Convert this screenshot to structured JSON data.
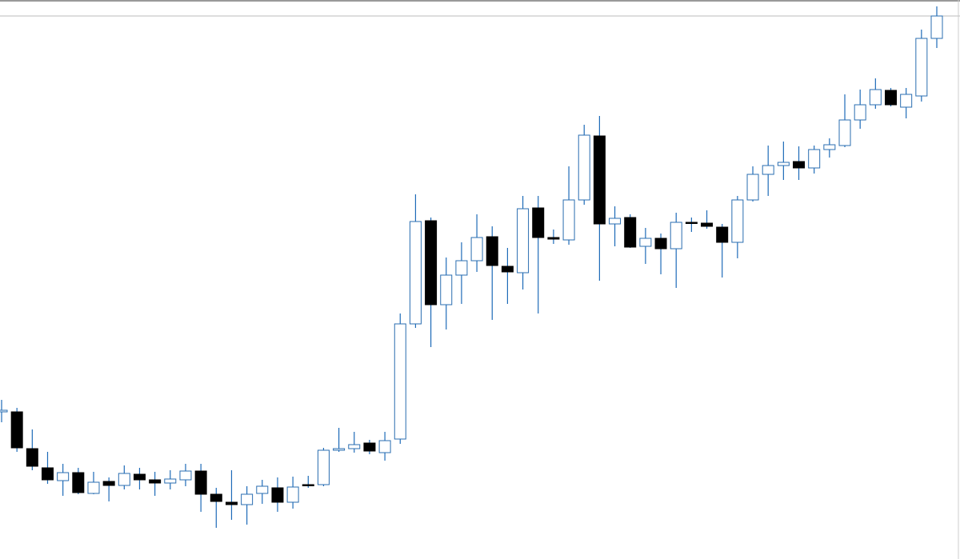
{
  "chart_data": {
    "type": "candlestick",
    "open": [
      185,
      185,
      139,
      115,
      99,
      109,
      83,
      98,
      93,
      107,
      100,
      96,
      100,
      111,
      82,
      72,
      69,
      83,
      90,
      72,
      94,
      94,
      137,
      139,
      146,
      134,
      151,
      295,
      424,
      319,
      356,
      374,
      404,
      367,
      359,
      440,
      403,
      400,
      450,
      530,
      420,
      428,
      392,
      402,
      389,
      422,
      421,
      416,
      397,
      450,
      482,
      493,
      498,
      490,
      513,
      518,
      550,
      569,
      587,
      566,
      580,
      652
    ],
    "high": [
      200,
      190,
      163,
      135,
      120,
      115,
      110,
      103,
      118,
      115,
      110,
      112,
      120,
      120,
      90,
      112,
      92,
      100,
      103,
      104,
      105,
      140,
      165,
      160,
      150,
      160,
      308,
      457,
      428,
      378,
      397,
      432,
      417,
      390,
      455,
      455,
      413,
      492,
      544,
      555,
      442,
      432,
      415,
      408,
      434,
      428,
      437,
      420,
      455,
      492,
      518,
      523,
      517,
      518,
      527,
      582,
      588,
      602,
      590,
      590,
      663,
      692
    ],
    "low": [
      172,
      135,
      112,
      95,
      80,
      82,
      82,
      73,
      88,
      88,
      80,
      88,
      92,
      60,
      40,
      50,
      44,
      70,
      60,
      64,
      90,
      92,
      135,
      134,
      132,
      124,
      145,
      290,
      266,
      288,
      320,
      360,
      300,
      320,
      338,
      308,
      395,
      394,
      444,
      349,
      392,
      390,
      370,
      357,
      340,
      410,
      414,
      353,
      377,
      448,
      455,
      475,
      475,
      483,
      503,
      516,
      539,
      564,
      567,
      552,
      573,
      640
    ],
    "close": [
      187,
      140,
      117,
      100,
      109,
      84,
      97,
      93,
      108,
      100,
      96,
      101,
      111,
      82,
      73,
      69,
      82,
      92,
      72,
      91,
      93,
      137,
      139,
      144,
      136,
      149,
      295,
      423,
      319,
      356,
      374,
      403,
      368,
      360,
      439,
      403,
      401,
      450,
      531,
      420,
      427,
      391,
      402,
      389,
      422,
      421,
      417,
      397,
      450,
      482,
      493,
      497,
      490,
      513,
      519,
      550,
      569,
      588,
      569,
      582,
      652,
      680
    ],
    "ylim": [
      1,
      700
    ],
    "up_color": "#ffffff",
    "down_color": "#000000",
    "body_stroke": "#2a6db0",
    "wick_color": "#1e6bb8"
  }
}
